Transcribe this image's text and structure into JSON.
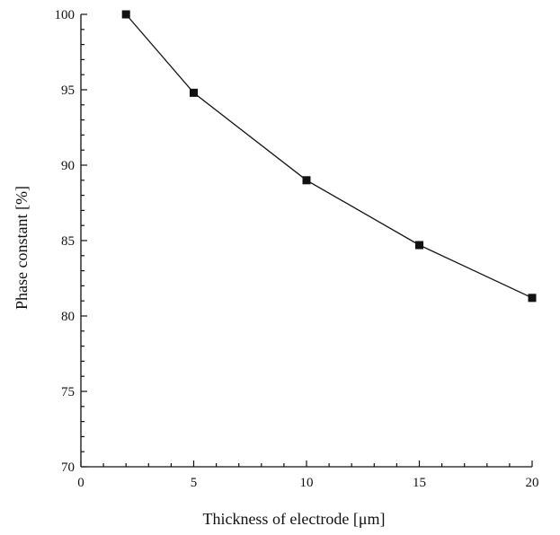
{
  "chart_data": {
    "type": "line",
    "title": "",
    "xlabel": "Thickness of electrode [μm]",
    "ylabel": "Phase constant [%]",
    "xlim": [
      0,
      20
    ],
    "ylim": [
      70,
      100
    ],
    "x_ticks": [
      0,
      5,
      10,
      15,
      20
    ],
    "y_ticks": [
      70,
      75,
      80,
      85,
      90,
      95,
      100
    ],
    "grid": false,
    "legend": "none",
    "series": [
      {
        "marker": "square",
        "color": "#111111",
        "x": [
          2,
          5,
          10,
          15,
          20
        ],
        "y": [
          100,
          94.8,
          89.0,
          84.7,
          81.2
        ]
      }
    ]
  }
}
